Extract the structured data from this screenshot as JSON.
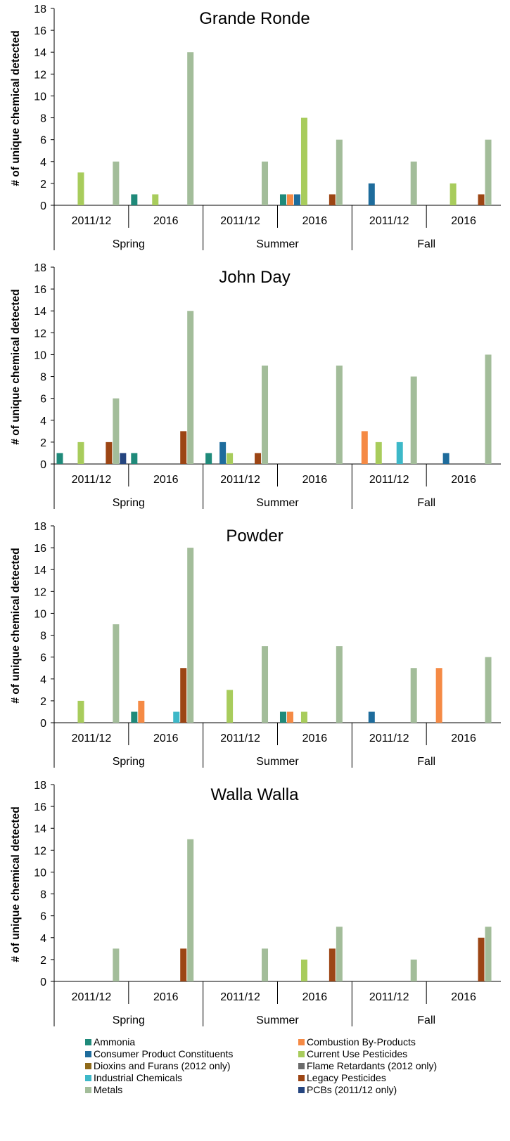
{
  "chart_data": [
    {
      "type": "bar",
      "title": "Grande Ronde",
      "ylabel": "# of unique chemical detected",
      "ylim": [
        0,
        18
      ],
      "yticks": [
        "0",
        "2",
        "4",
        "6",
        "8",
        "10",
        "12",
        "14",
        "16",
        "18"
      ],
      "seasons": [
        "Spring",
        "Summer",
        "Fall"
      ],
      "periods": [
        "2011/12",
        "2016"
      ],
      "bars": [
        {
          "season": "Spring",
          "period": "2011/12",
          "series": "Current Use Pesticides",
          "value": 3
        },
        {
          "season": "Spring",
          "period": "2011/12",
          "series": "Metals",
          "value": 4
        },
        {
          "season": "Spring",
          "period": "2016",
          "series": "Ammonia",
          "value": 1
        },
        {
          "season": "Spring",
          "period": "2016",
          "series": "Current Use Pesticides",
          "value": 1
        },
        {
          "season": "Spring",
          "period": "2016",
          "series": "Metals",
          "value": 14
        },
        {
          "season": "Summer",
          "period": "2011/12",
          "series": "Metals",
          "value": 4
        },
        {
          "season": "Summer",
          "period": "2016",
          "series": "Ammonia",
          "value": 1
        },
        {
          "season": "Summer",
          "period": "2016",
          "series": "Combustion By-Products",
          "value": 1
        },
        {
          "season": "Summer",
          "period": "2016",
          "series": "Consumer Product Constituents",
          "value": 1
        },
        {
          "season": "Summer",
          "period": "2016",
          "series": "Current Use Pesticides",
          "value": 8
        },
        {
          "season": "Summer",
          "period": "2016",
          "series": "Legacy Pesticides",
          "value": 1
        },
        {
          "season": "Summer",
          "period": "2016",
          "series": "Metals",
          "value": 6
        },
        {
          "season": "Fall",
          "period": "2011/12",
          "series": "Consumer Product Constituents",
          "value": 2
        },
        {
          "season": "Fall",
          "period": "2011/12",
          "series": "Metals",
          "value": 4
        },
        {
          "season": "Fall",
          "period": "2016",
          "series": "Current Use Pesticides",
          "value": 2
        },
        {
          "season": "Fall",
          "period": "2016",
          "series": "Legacy Pesticides",
          "value": 1
        },
        {
          "season": "Fall",
          "period": "2016",
          "series": "Metals",
          "value": 6
        }
      ]
    },
    {
      "type": "bar",
      "title": "John Day",
      "ylabel": "# of unique chemical detected",
      "ylim": [
        0,
        18
      ],
      "yticks": [
        "0",
        "2",
        "4",
        "6",
        "8",
        "10",
        "12",
        "14",
        "16",
        "18"
      ],
      "seasons": [
        "Spring",
        "Summer",
        "Fall"
      ],
      "periods": [
        "2011/12",
        "2016"
      ],
      "bars": [
        {
          "season": "Spring",
          "period": "2011/12",
          "series": "Ammonia",
          "value": 1
        },
        {
          "season": "Spring",
          "period": "2011/12",
          "series": "Current Use Pesticides",
          "value": 2
        },
        {
          "season": "Spring",
          "period": "2011/12",
          "series": "Legacy Pesticides",
          "value": 2
        },
        {
          "season": "Spring",
          "period": "2011/12",
          "series": "Metals",
          "value": 6
        },
        {
          "season": "Spring",
          "period": "2011/12",
          "series": "PCBs (2011/12 only)",
          "value": 1
        },
        {
          "season": "Spring",
          "period": "2016",
          "series": "Ammonia",
          "value": 1
        },
        {
          "season": "Spring",
          "period": "2016",
          "series": "Legacy Pesticides",
          "value": 3
        },
        {
          "season": "Spring",
          "period": "2016",
          "series": "Metals",
          "value": 14
        },
        {
          "season": "Summer",
          "period": "2011/12",
          "series": "Ammonia",
          "value": 1
        },
        {
          "season": "Summer",
          "period": "2011/12",
          "series": "Consumer Product Constituents",
          "value": 2
        },
        {
          "season": "Summer",
          "period": "2011/12",
          "series": "Current Use Pesticides",
          "value": 1
        },
        {
          "season": "Summer",
          "period": "2011/12",
          "series": "Legacy Pesticides",
          "value": 1
        },
        {
          "season": "Summer",
          "period": "2011/12",
          "series": "Metals",
          "value": 9
        },
        {
          "season": "Summer",
          "period": "2016",
          "series": "Metals",
          "value": 9
        },
        {
          "season": "Fall",
          "period": "2011/12",
          "series": "Combustion By-Products",
          "value": 3
        },
        {
          "season": "Fall",
          "period": "2011/12",
          "series": "Current Use Pesticides",
          "value": 2
        },
        {
          "season": "Fall",
          "period": "2011/12",
          "series": "Industrial Chemicals",
          "value": 2
        },
        {
          "season": "Fall",
          "period": "2011/12",
          "series": "Metals",
          "value": 8
        },
        {
          "season": "Fall",
          "period": "2016",
          "series": "Consumer Product Constituents",
          "value": 1
        },
        {
          "season": "Fall",
          "period": "2016",
          "series": "Metals",
          "value": 10
        }
      ]
    },
    {
      "type": "bar",
      "title": "Powder",
      "ylabel": "# of unique chemical detected",
      "ylim": [
        0,
        18
      ],
      "yticks": [
        "0",
        "2",
        "4",
        "6",
        "8",
        "10",
        "12",
        "14",
        "16",
        "18"
      ],
      "seasons": [
        "Spring",
        "Summer",
        "Fall"
      ],
      "periods": [
        "2011/12",
        "2016"
      ],
      "bars": [
        {
          "season": "Spring",
          "period": "2011/12",
          "series": "Current Use Pesticides",
          "value": 2
        },
        {
          "season": "Spring",
          "period": "2011/12",
          "series": "Metals",
          "value": 9
        },
        {
          "season": "Spring",
          "period": "2016",
          "series": "Ammonia",
          "value": 1
        },
        {
          "season": "Spring",
          "period": "2016",
          "series": "Combustion By-Products",
          "value": 2
        },
        {
          "season": "Spring",
          "period": "2016",
          "series": "Industrial Chemicals",
          "value": 1
        },
        {
          "season": "Spring",
          "period": "2016",
          "series": "Legacy Pesticides",
          "value": 5
        },
        {
          "season": "Spring",
          "period": "2016",
          "series": "Metals",
          "value": 16
        },
        {
          "season": "Summer",
          "period": "2011/12",
          "series": "Current Use Pesticides",
          "value": 3
        },
        {
          "season": "Summer",
          "period": "2011/12",
          "series": "Metals",
          "value": 7
        },
        {
          "season": "Summer",
          "period": "2016",
          "series": "Ammonia",
          "value": 1
        },
        {
          "season": "Summer",
          "period": "2016",
          "series": "Combustion By-Products",
          "value": 1
        },
        {
          "season": "Summer",
          "period": "2016",
          "series": "Current Use Pesticides",
          "value": 1
        },
        {
          "season": "Summer",
          "period": "2016",
          "series": "Metals",
          "value": 7
        },
        {
          "season": "Fall",
          "period": "2011/12",
          "series": "Consumer Product Constituents",
          "value": 1
        },
        {
          "season": "Fall",
          "period": "2011/12",
          "series": "Metals",
          "value": 5
        },
        {
          "season": "Fall",
          "period": "2016",
          "series": "Combustion By-Products",
          "value": 5
        },
        {
          "season": "Fall",
          "period": "2016",
          "series": "Metals",
          "value": 6
        }
      ]
    },
    {
      "type": "bar",
      "title": "Walla Walla",
      "ylabel": "# of unique chemical detected",
      "ylim": [
        0,
        18
      ],
      "yticks": [
        "0",
        "2",
        "4",
        "6",
        "8",
        "10",
        "12",
        "14",
        "16",
        "18"
      ],
      "seasons": [
        "Spring",
        "Summer",
        "Fall"
      ],
      "periods": [
        "2011/12",
        "2016"
      ],
      "bars": [
        {
          "season": "Spring",
          "period": "2011/12",
          "series": "Metals",
          "value": 3
        },
        {
          "season": "Spring",
          "period": "2016",
          "series": "Legacy Pesticides",
          "value": 3
        },
        {
          "season": "Spring",
          "period": "2016",
          "series": "Metals",
          "value": 13
        },
        {
          "season": "Summer",
          "period": "2011/12",
          "series": "Metals",
          "value": 3
        },
        {
          "season": "Summer",
          "period": "2016",
          "series": "Current Use Pesticides",
          "value": 2
        },
        {
          "season": "Summer",
          "period": "2016",
          "series": "Legacy Pesticides",
          "value": 3
        },
        {
          "season": "Summer",
          "period": "2016",
          "series": "Metals",
          "value": 5
        },
        {
          "season": "Fall",
          "period": "2011/12",
          "series": "Metals",
          "value": 2
        },
        {
          "season": "Fall",
          "period": "2016",
          "series": "Legacy Pesticides",
          "value": 4
        },
        {
          "season": "Fall",
          "period": "2016",
          "series": "Metals",
          "value": 5
        }
      ]
    }
  ],
  "series": [
    {
      "name": "Ammonia",
      "color": "#1f8a7a"
    },
    {
      "name": "Combustion By-Products",
      "color": "#f58a45"
    },
    {
      "name": "Consumer Product Constituents",
      "color": "#1e6c9c"
    },
    {
      "name": "Current Use Pesticides",
      "color": "#a8cc5c"
    },
    {
      "name": "Dioxins and Furans (2012 only)",
      "color": "#8f6a1a"
    },
    {
      "name": "Flame Retardants (2012 only)",
      "color": "#6b6b6b"
    },
    {
      "name": "Industrial Chemicals",
      "color": "#3db8c8"
    },
    {
      "name": "Legacy Pesticides",
      "color": "#9c4514"
    },
    {
      "name": "Metals",
      "color": "#a3bd9a"
    },
    {
      "name": "PCBs (2011/12 only)",
      "color": "#25457f"
    }
  ],
  "legend_order": [
    "Ammonia",
    "Combustion By-Products",
    "Consumer Product Constituents",
    "Current Use Pesticides",
    "Dioxins and Furans (2012 only)",
    "Flame Retardants (2012 only)",
    "Industrial Chemicals",
    "Legacy Pesticides",
    "Metals",
    "PCBs (2011/12 only)"
  ]
}
